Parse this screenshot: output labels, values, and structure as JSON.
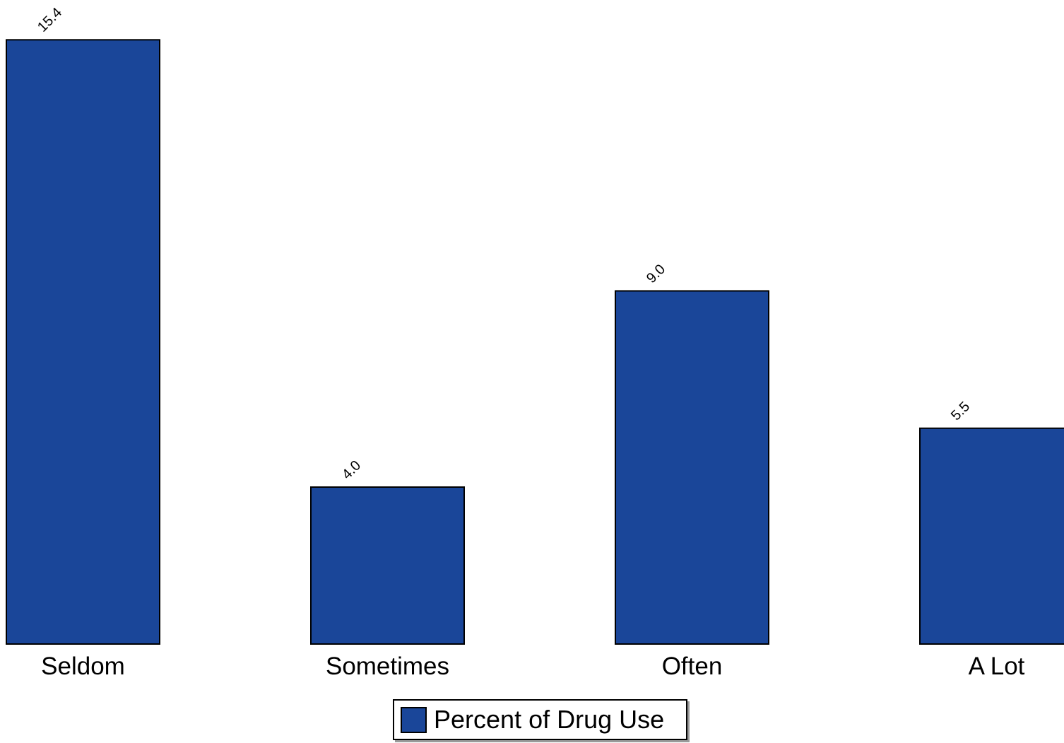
{
  "chart_data": {
    "type": "bar",
    "categories": [
      "Seldom",
      "Sometimes",
      "Often",
      "A Lot"
    ],
    "series": [
      {
        "name": "Percent of Drug Use",
        "values": [
          15.4,
          4.0,
          9.0,
          5.5
        ]
      }
    ],
    "data_labels": [
      "15.4",
      "4.0",
      "9.0",
      "5.5"
    ],
    "ylim": [
      0,
      16.4
    ],
    "grid": false,
    "legend_position": "bottom-center",
    "bar_color": "#1a4699",
    "outline_color": "#000000"
  }
}
